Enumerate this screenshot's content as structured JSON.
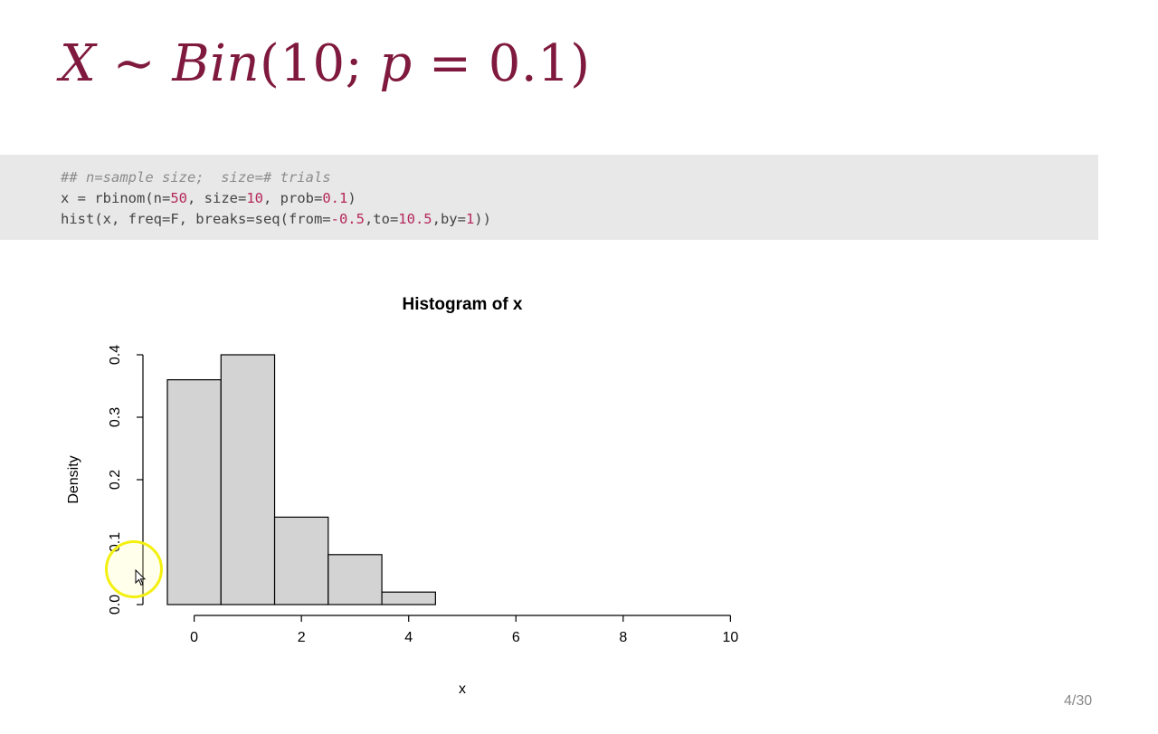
{
  "slide": {
    "title_parts": {
      "x": "X",
      "tilde": " ∼ ",
      "dist": "Bin",
      "args_open": "(10; ",
      "p": "p",
      "args_close": " = 0.1)"
    },
    "page_number": "4/30"
  },
  "code": {
    "comment": "## n=sample size;  size=# trials",
    "line2": {
      "a": "x = rbinom(n=",
      "n": "50",
      "b": ", size=",
      "size": "10",
      "c": ", prob=",
      "prob": "0.1",
      "d": ")"
    },
    "line3": {
      "a": "hist(x, freq=F, breaks=seq(from=",
      "from": "-0.5",
      "b": ",to=",
      "to": "10.5",
      "c": ",by=",
      "by": "1",
      "d": "))"
    }
  },
  "chart_data": {
    "type": "bar",
    "title": "Histogram of x",
    "xlabel": "x",
    "ylabel": "Density",
    "breaks": [
      -0.5,
      0.5,
      1.5,
      2.5,
      3.5,
      4.5,
      5.5,
      6.5,
      7.5,
      8.5,
      9.5,
      10.5
    ],
    "values": [
      0.36,
      0.4,
      0.14,
      0.08,
      0.02,
      0,
      0,
      0,
      0,
      0,
      0
    ],
    "x_ticks": [
      0,
      2,
      4,
      6,
      8,
      10
    ],
    "y_ticks": [
      0.0,
      0.1,
      0.2,
      0.3,
      0.4
    ],
    "y_tick_labels": [
      "0.0",
      "0.1",
      "0.2",
      "0.3",
      "0.4"
    ],
    "xlim": [
      -0.5,
      10.5
    ],
    "ylim": [
      0,
      0.4
    ],
    "bar_fill": "#d3d3d3",
    "bar_stroke": "#000000",
    "grid": false
  }
}
